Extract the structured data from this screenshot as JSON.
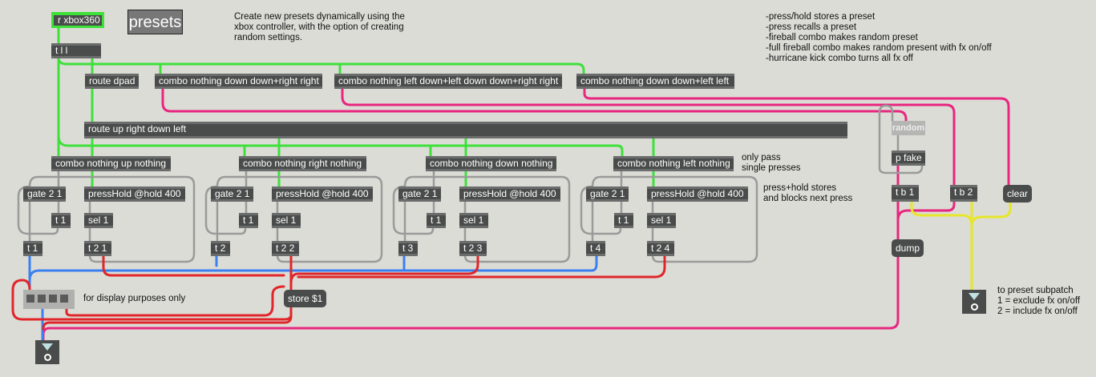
{
  "patch": {
    "receive": "r xbox360",
    "presets_title": "presets",
    "description": "Create new presets dynamically using the\nxbox controller, with the option of creating\nrandom settings.",
    "instructions": "-press/hold stores a preset\n-press recalls a preset\n-fireball combo makes random preset\n-full fireball combo makes random present with fx on/off\n-hurricane kick combo turns all fx off",
    "trigger": "t l l",
    "route_dpad": "route dpad",
    "combo_fireball": "combo nothing down down+right right",
    "combo_full_fireball": "combo nothing left down+left down down+right right",
    "combo_hurricane": "combo nothing down down+left left",
    "route_dirs": "route up right down left",
    "only_pass_comment": "only pass\nsingle presses",
    "presshold_comment": "press+hold stores\nand blocks next press",
    "groups": [
      {
        "combo": "combo nothing up nothing",
        "gate": "gate 2 1",
        "presshold": "pressHold @hold 400",
        "t1": "t 1",
        "sel": "sel 1",
        "tout": "t 1",
        "tstore": "t 2 1"
      },
      {
        "combo": "combo nothing right nothing",
        "gate": "gate 2 1",
        "presshold": "pressHold @hold 400",
        "t1": "t 1",
        "sel": "sel 1",
        "tout": "t 2",
        "tstore": "t 2 2"
      },
      {
        "combo": "combo nothing down nothing",
        "gate": "gate 2 1",
        "presshold": "pressHold @hold 400",
        "t1": "t 1",
        "sel": "sel 1",
        "tout": "t 3",
        "tstore": "t 2 3"
      },
      {
        "combo": "combo nothing left nothing",
        "gate": "gate 2 1",
        "presshold": "pressHold @hold 400",
        "t1": "t 1",
        "sel": "sel 1",
        "tout": "t 4",
        "tstore": "t 2 4"
      }
    ],
    "display_comment": "for display purposes only",
    "store": "store $1",
    "random": "random",
    "p_fake": "p fake",
    "tb1": "t b 1",
    "tb2": "t b 2",
    "clear": "clear",
    "dump": "dump",
    "outlet_label": "o",
    "outlet_comment": "to preset subpatch\n1 = exclude fx on/off\n2 = include fx on/off"
  },
  "colors": {
    "background": "#dcdcd6",
    "object": "#4a4b4b",
    "cord_green": "#3ee03a",
    "cord_pink": "#e8267f",
    "cord_red": "#e0262a",
    "cord_blue": "#3b7ff0",
    "cord_yellow": "#e6e62a",
    "cord_gray": "#9a9a9a"
  }
}
